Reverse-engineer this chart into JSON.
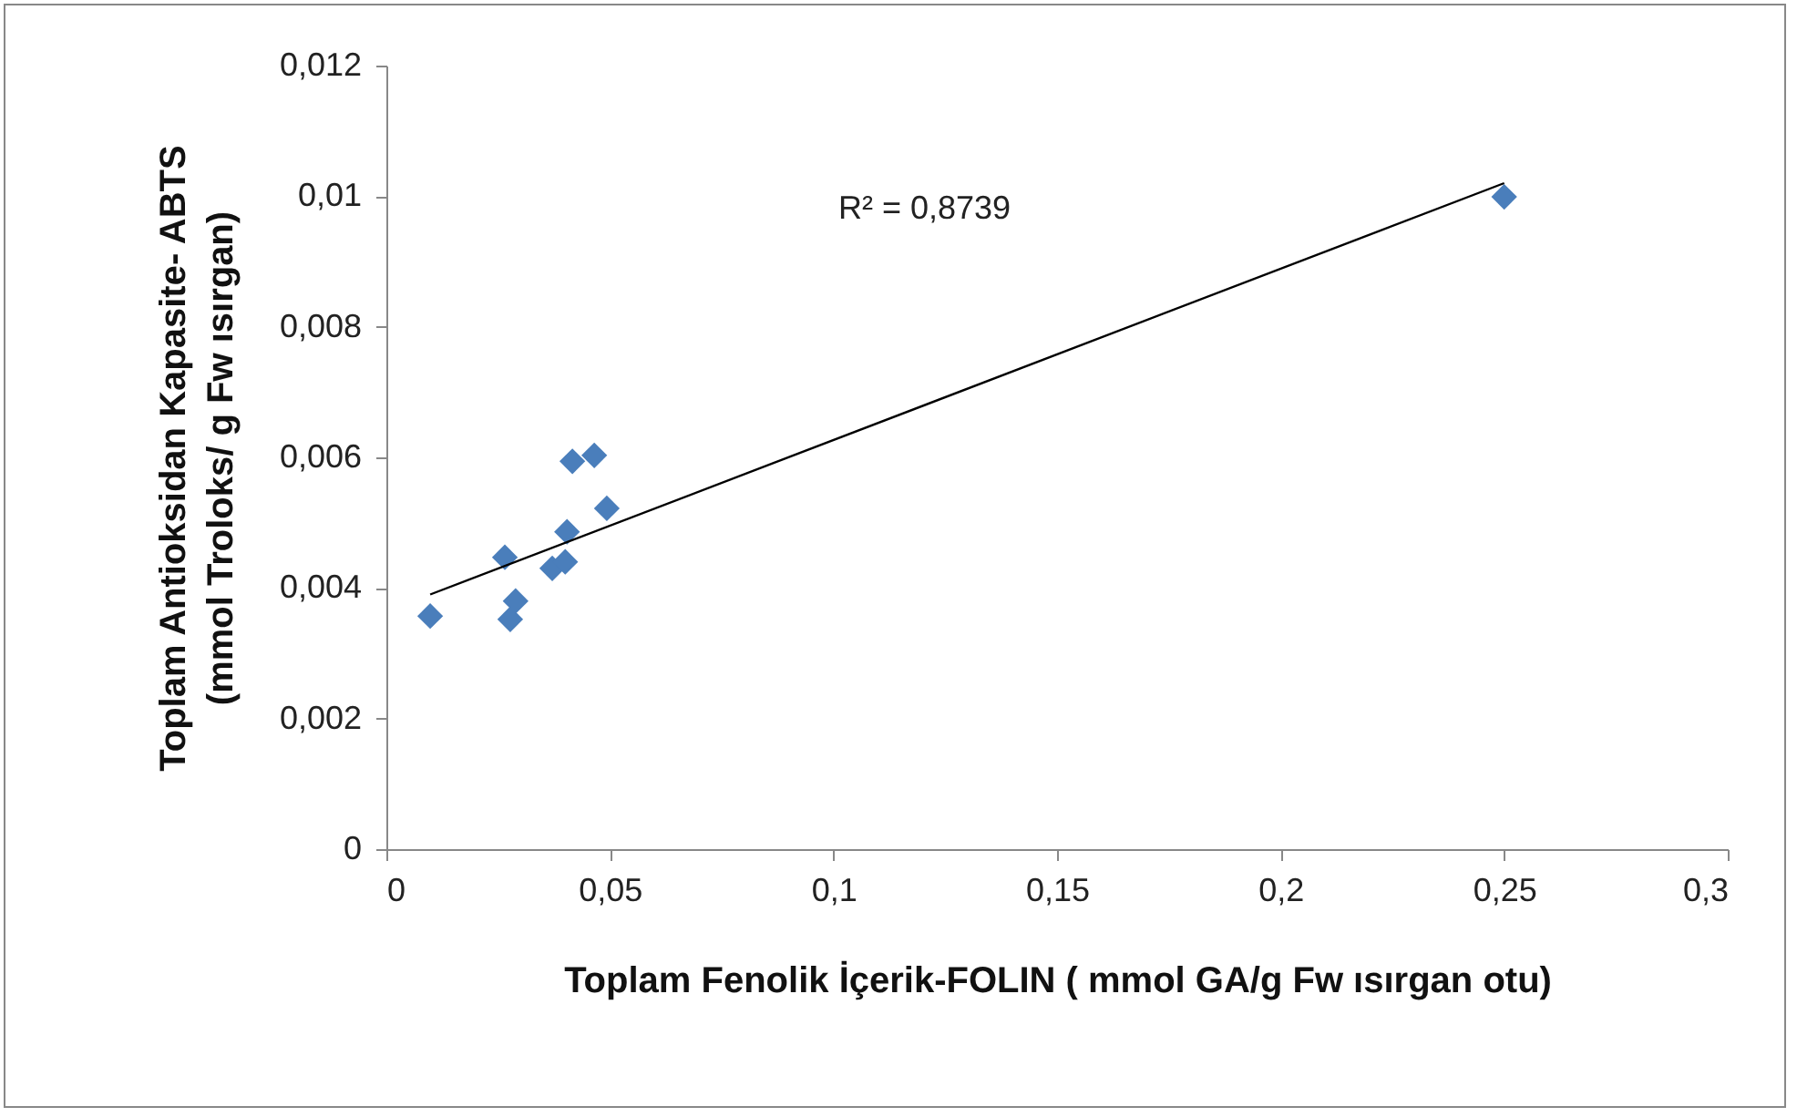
{
  "chart_data": {
    "type": "scatter",
    "xlabel": "Toplam Fenolik İçerik-FOLIN ( mmol GA/g Fw ısırgan otu)",
    "ylabel": "Toplam Antioksidan Kapasite- ABTS\n(mmol Troloks/ g Fw ısırgan)",
    "xlim": [
      0,
      0.3
    ],
    "ylim": [
      0,
      0.012
    ],
    "xticks": [
      0,
      {
        "value": 0.05,
        "label": "0,05"
      },
      {
        "value": 0.1,
        "label": "0,1"
      },
      {
        "value": 0.15,
        "label": "0,15"
      },
      {
        "value": 0.2,
        "label": "0,2"
      },
      {
        "value": 0.25,
        "label": "0,25"
      },
      {
        "value": 0.3,
        "label": "0,3"
      }
    ],
    "yticks": [
      0,
      {
        "value": 0.002,
        "label": "0,002"
      },
      {
        "value": 0.004,
        "label": "0,004"
      },
      {
        "value": 0.006,
        "label": "0,006"
      },
      {
        "value": 0.008,
        "label": "0,008"
      },
      {
        "value": 0.01,
        "label": "0,01"
      },
      {
        "value": 0.012,
        "label": "0,012"
      }
    ],
    "grid": false,
    "series": [
      {
        "color": "#4a7ebb",
        "marker": "diamond",
        "x": [
          0.0098,
          0.0265,
          0.0277,
          0.0289,
          0.0371,
          0.04,
          0.0404,
          0.0416,
          0.0465,
          0.0493,
          0.25
        ],
        "values": [
          0.00357,
          0.00447,
          0.00352,
          0.0038,
          0.0043,
          0.0044,
          0.00486,
          0.00594,
          0.00603,
          0.00522,
          0.00999
        ]
      },
      {
        "type": "line",
        "color": "#000000",
        "x": [
          0.0098,
          0.25
        ],
        "values": [
          0.0039,
          0.0102
        ]
      }
    ],
    "annotations": [
      "R² = 0,8739"
    ]
  }
}
